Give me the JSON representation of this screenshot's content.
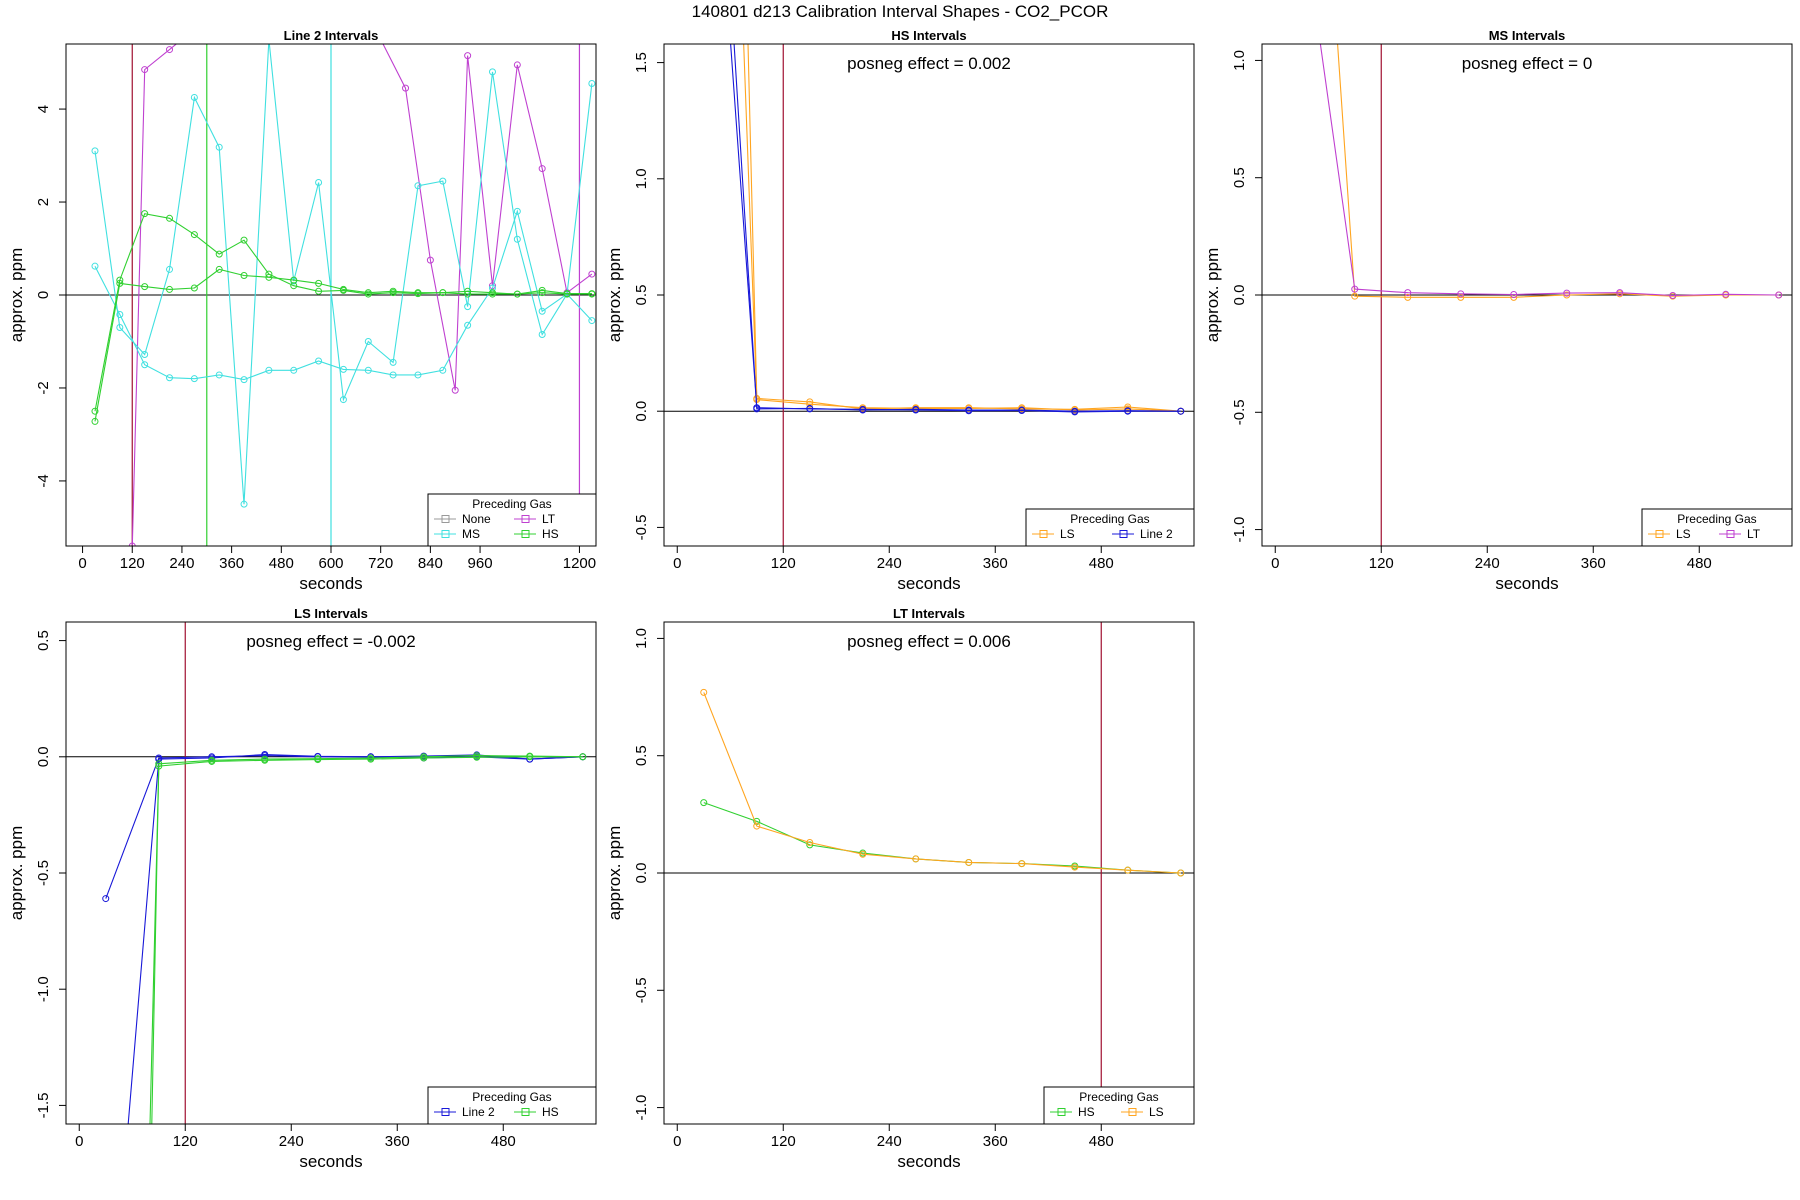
{
  "figure": {
    "title": "140801  d213   Calibration Interval Shapes - CO2_PCOR"
  },
  "colors": {
    "None": "#999999",
    "LT": "#bf40d0",
    "MS": "#40e0e0",
    "HS": "#30d030",
    "LS": "#ffa520",
    "Line 2": "#1818d8",
    "refline": "#a01030",
    "axis": "#000000"
  },
  "chart_data": [
    {
      "type": "line",
      "title": "Line 2 Intervals",
      "xlabel": "seconds",
      "ylabel": "approx. ppm",
      "xlim": [
        -40,
        1240
      ],
      "ylim": [
        -5.4,
        5.4
      ],
      "xticks": [
        0,
        120,
        240,
        360,
        480,
        600,
        720,
        840,
        960,
        1200
      ],
      "yticks": [
        -4,
        -2,
        0,
        2,
        4
      ],
      "annotation": "",
      "legend": {
        "title": "Preceding Gas",
        "position": "bottom-right",
        "columns": 2,
        "entries": [
          "None",
          "LT",
          "MS",
          "HS"
        ]
      },
      "vlines": [
        {
          "x": 120,
          "color": "#a01030"
        },
        {
          "x": 300,
          "color": "#30d030"
        },
        {
          "x": 600,
          "color": "#40e0e0"
        },
        {
          "x": 1200,
          "color": "#bf40d0"
        }
      ],
      "series": [
        {
          "name": "LT",
          "color": "#bf40d0",
          "x": [
            120,
            150,
            210,
            240,
            720,
            780,
            840,
            900,
            930,
            990,
            1050,
            1110,
            1170,
            1230
          ],
          "y": [
            -5.4,
            4.85,
            5.28,
            5.5,
            5.5,
            4.45,
            0.75,
            -2.05,
            5.15,
            0.2,
            4.95,
            2.72,
            0.05,
            0.45
          ]
        },
        {
          "name": "MS",
          "color": "#40e0e0",
          "x": [
            30,
            90,
            150,
            210,
            270,
            330,
            390,
            450,
            510,
            570,
            630,
            690,
            750,
            810,
            870,
            930,
            990,
            1050,
            1110,
            1170,
            1230
          ],
          "y": [
            3.1,
            -0.7,
            -1.28,
            0.55,
            4.25,
            3.18,
            -4.5,
            5.5,
            0.3,
            2.42,
            -2.25,
            -1.0,
            -1.45,
            2.35,
            2.45,
            -0.25,
            4.8,
            1.2,
            -0.85,
            0.02,
            4.55
          ]
        },
        {
          "name": "MS",
          "color": "#40e0e0",
          "x": [
            30,
            90,
            150,
            210,
            270,
            330,
            390,
            450,
            510,
            570,
            630,
            690,
            750,
            810,
            870,
            930,
            990,
            1050,
            1110,
            1170,
            1230
          ],
          "y": [
            0.62,
            -0.42,
            -1.5,
            -1.78,
            -1.8,
            -1.72,
            -1.82,
            -1.62,
            -1.62,
            -1.42,
            -1.6,
            -1.62,
            -1.72,
            -1.72,
            -1.62,
            -0.65,
            0.15,
            1.8,
            -0.35,
            0.02,
            -0.55
          ]
        },
        {
          "name": "HS",
          "color": "#30d030",
          "x": [
            30,
            90,
            150,
            210,
            270,
            330,
            390,
            450,
            510,
            570,
            630,
            690,
            750,
            810,
            870,
            930,
            990,
            1050,
            1110,
            1170,
            1230
          ],
          "y": [
            -2.72,
            0.25,
            0.18,
            0.12,
            0.15,
            0.55,
            0.42,
            0.38,
            0.32,
            0.25,
            0.12,
            0.05,
            0.08,
            0.05,
            0.05,
            0.08,
            0.05,
            0.02,
            0.1,
            0.03,
            0.03
          ]
        },
        {
          "name": "HS",
          "color": "#30d030",
          "x": [
            30,
            90,
            150,
            210,
            270,
            330,
            390,
            450,
            510,
            570,
            630,
            690,
            750,
            810,
            870,
            930,
            990,
            1050,
            1110,
            1170,
            1230
          ],
          "y": [
            -2.5,
            0.32,
            1.75,
            1.65,
            1.3,
            0.88,
            1.18,
            0.45,
            0.2,
            0.08,
            0.1,
            0.02,
            0.05,
            0.03,
            0.05,
            0.02,
            0.02,
            0.02,
            0.05,
            0.02,
            0.02
          ]
        }
      ]
    },
    {
      "type": "line",
      "title": "HS Intervals",
      "xlabel": "seconds",
      "ylabel": "approx. ppm",
      "xlim": [
        -15,
        585
      ],
      "ylim": [
        -0.58,
        1.58
      ],
      "xticks": [
        0,
        120,
        240,
        360,
        480
      ],
      "yticks": [
        -0.5,
        0.0,
        0.5,
        1.0,
        1.5
      ],
      "annotation": "posneg effect = 0.002",
      "legend": {
        "title": "Preceding Gas",
        "position": "bottom-right",
        "columns": 2,
        "entries": [
          "LS",
          "Line 2"
        ]
      },
      "vlines": [
        {
          "x": 120,
          "color": "#a01030"
        }
      ],
      "series": [
        {
          "name": "LS",
          "color": "#ffa520",
          "x": [
            75,
            90,
            150,
            210,
            270,
            330,
            390,
            450,
            510,
            570
          ],
          "y": [
            1.6,
            0.05,
            0.03,
            0.015,
            0.012,
            0.012,
            0.015,
            0.005,
            0.01,
            0.0
          ]
        },
        {
          "name": "LS",
          "color": "#ffa520",
          "x": [
            80,
            90,
            150,
            210,
            270,
            330,
            390,
            450,
            510,
            570
          ],
          "y": [
            1.6,
            0.055,
            0.04,
            0.01,
            0.015,
            0.015,
            0.01,
            0.008,
            0.018,
            0.0
          ]
        },
        {
          "name": "Line 2",
          "color": "#1818d8",
          "x": [
            60,
            90,
            150,
            210,
            270,
            330,
            390,
            450,
            510,
            570
          ],
          "y": [
            1.6,
            0.015,
            0.01,
            0.008,
            0.005,
            0.002,
            0.003,
            -0.003,
            0.0,
            0.0
          ]
        },
        {
          "name": "Line 2",
          "color": "#1818d8",
          "x": [
            64,
            90,
            150,
            210,
            270,
            330,
            390,
            450,
            510,
            570
          ],
          "y": [
            1.6,
            0.01,
            0.012,
            0.005,
            0.008,
            0.005,
            0.005,
            0.0,
            0.002,
            0.0
          ]
        }
      ]
    },
    {
      "type": "line",
      "title": "MS Intervals",
      "xlabel": "seconds",
      "ylabel": "approx. ppm",
      "xlim": [
        -15,
        585
      ],
      "ylim": [
        -1.07,
        1.07
      ],
      "xticks": [
        0,
        120,
        240,
        360,
        480
      ],
      "yticks": [
        -1.0,
        -0.5,
        0.0,
        0.5,
        1.0
      ],
      "annotation": "posneg effect = 0",
      "legend": {
        "title": "Preceding Gas",
        "position": "bottom-right",
        "columns": 2,
        "entries": [
          "LS",
          "LT"
        ]
      },
      "vlines": [
        {
          "x": 120,
          "color": "#a01030"
        }
      ],
      "series": [
        {
          "name": "LS",
          "color": "#ffa520",
          "x": [
            70,
            90,
            150,
            210,
            270,
            330,
            390,
            450,
            510,
            570
          ],
          "y": [
            1.1,
            -0.005,
            -0.01,
            -0.01,
            -0.01,
            0.0,
            0.005,
            -0.005,
            0.0,
            0.0
          ]
        },
        {
          "name": "LT",
          "color": "#bf40d0",
          "x": [
            50,
            90,
            150,
            210,
            270,
            330,
            390,
            450,
            510,
            570
          ],
          "y": [
            1.1,
            0.025,
            0.01,
            0.005,
            0.002,
            0.008,
            0.01,
            -0.002,
            0.003,
            0.0
          ]
        }
      ]
    },
    {
      "type": "line",
      "title": "LS Intervals",
      "xlabel": "seconds",
      "ylabel": "approx. ppm",
      "xlim": [
        -15,
        585
      ],
      "ylim": [
        -1.58,
        0.58
      ],
      "xticks": [
        0,
        120,
        240,
        360,
        480
      ],
      "yticks": [
        -1.5,
        -1.0,
        -0.5,
        0.0,
        0.5
      ],
      "annotation": "posneg effect = -0.002",
      "legend": {
        "title": "Preceding Gas",
        "position": "bottom-right",
        "columns": 2,
        "entries": [
          "Line 2",
          "HS"
        ]
      },
      "vlines": [
        {
          "x": 120,
          "color": "#a01030"
        }
      ],
      "series": [
        {
          "name": "Line 2",
          "color": "#1818d8",
          "x": [
            30,
            90,
            150,
            210,
            270,
            330,
            390,
            450,
            510,
            570
          ],
          "y": [
            -0.61,
            -0.005,
            0.0,
            0.005,
            0.0,
            0.0,
            -0.005,
            0.0,
            -0.01,
            0.0
          ]
        },
        {
          "name": "Line 2",
          "color": "#1818d8",
          "x": [
            55,
            90,
            150,
            210,
            270,
            330,
            390,
            450,
            510,
            570
          ],
          "y": [
            -1.6,
            -0.01,
            -0.005,
            0.01,
            0.002,
            0.0,
            0.003,
            0.008,
            -0.01,
            0.0
          ]
        },
        {
          "name": "HS",
          "color": "#30d030",
          "x": [
            80,
            90,
            150,
            210,
            270,
            330,
            390,
            450,
            510,
            570
          ],
          "y": [
            -1.6,
            -0.04,
            -0.02,
            -0.015,
            -0.012,
            -0.01,
            -0.005,
            -0.002,
            0.0,
            0.0
          ]
        },
        {
          "name": "HS",
          "color": "#30d030",
          "x": [
            82,
            90,
            150,
            210,
            270,
            330,
            390,
            450,
            510,
            570
          ],
          "y": [
            -1.6,
            -0.03,
            -0.015,
            -0.01,
            -0.008,
            -0.005,
            0.0,
            0.005,
            0.003,
            0.0
          ]
        }
      ]
    },
    {
      "type": "line",
      "title": "LT Intervals",
      "xlabel": "seconds",
      "ylabel": "approx. ppm",
      "xlim": [
        -15,
        585
      ],
      "ylim": [
        -1.07,
        1.07
      ],
      "xticks": [
        0,
        120,
        240,
        360,
        480
      ],
      "yticks": [
        -1.0,
        -0.5,
        0.0,
        0.5,
        1.0
      ],
      "annotation": "posneg effect = 0.006",
      "legend": {
        "title": "Preceding Gas",
        "position": "bottom-right",
        "columns": 2,
        "entries": [
          "HS",
          "LS"
        ]
      },
      "vlines": [
        {
          "x": 480,
          "color": "#a01030"
        }
      ],
      "series": [
        {
          "name": "HS",
          "color": "#30d030",
          "x": [
            30,
            90,
            150,
            210,
            270,
            330,
            390,
            450,
            510,
            570
          ],
          "y": [
            0.3,
            0.22,
            0.12,
            0.085,
            0.06,
            0.045,
            0.04,
            0.03,
            0.012,
            0.0
          ]
        },
        {
          "name": "LS",
          "color": "#ffa520",
          "x": [
            30,
            90,
            150,
            210,
            270,
            330,
            390,
            450,
            510,
            570
          ],
          "y": [
            0.77,
            0.2,
            0.13,
            0.08,
            0.06,
            0.045,
            0.04,
            0.025,
            0.012,
            0.0
          ]
        }
      ]
    }
  ]
}
